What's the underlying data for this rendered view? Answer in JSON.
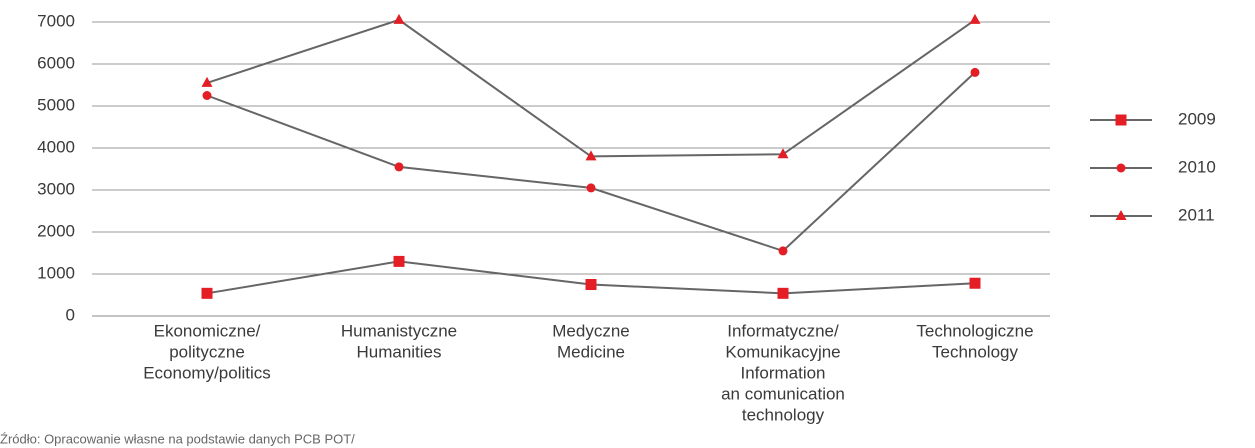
{
  "chart_data": {
    "type": "line",
    "categories": [
      [
        "Ekonomiczne/",
        "polityczne",
        "Economy/politics"
      ],
      [
        "Humanistyczne",
        "Humanities"
      ],
      [
        "Medyczne",
        "Medicine"
      ],
      [
        "Informatyczne/",
        "Komunikacyjne",
        "Information",
        "an comunication",
        "technology"
      ],
      [
        "Technologiczne",
        "Technology"
      ]
    ],
    "series": [
      {
        "name": "2009",
        "color": "#e31e24",
        "line_color": "#666666",
        "marker": "square",
        "values": [
          540,
          1300,
          750,
          540,
          780
        ]
      },
      {
        "name": "2010",
        "color": "#e31e24",
        "line_color": "#666666",
        "marker": "circle",
        "values": [
          5250,
          3550,
          3050,
          1550,
          5800
        ]
      },
      {
        "name": "2011",
        "color": "#e31e24",
        "line_color": "#666666",
        "marker": "triangle",
        "values": [
          5550,
          7050,
          3800,
          3850,
          7050
        ]
      }
    ],
    "ylim": [
      0,
      7000
    ],
    "yticks": [
      0,
      1000,
      2000,
      3000,
      4000,
      5000,
      6000,
      7000
    ],
    "grid": true,
    "legend": "right",
    "source": "Źródło: Opracowanie własne na podstawie danych PCB POT/"
  }
}
